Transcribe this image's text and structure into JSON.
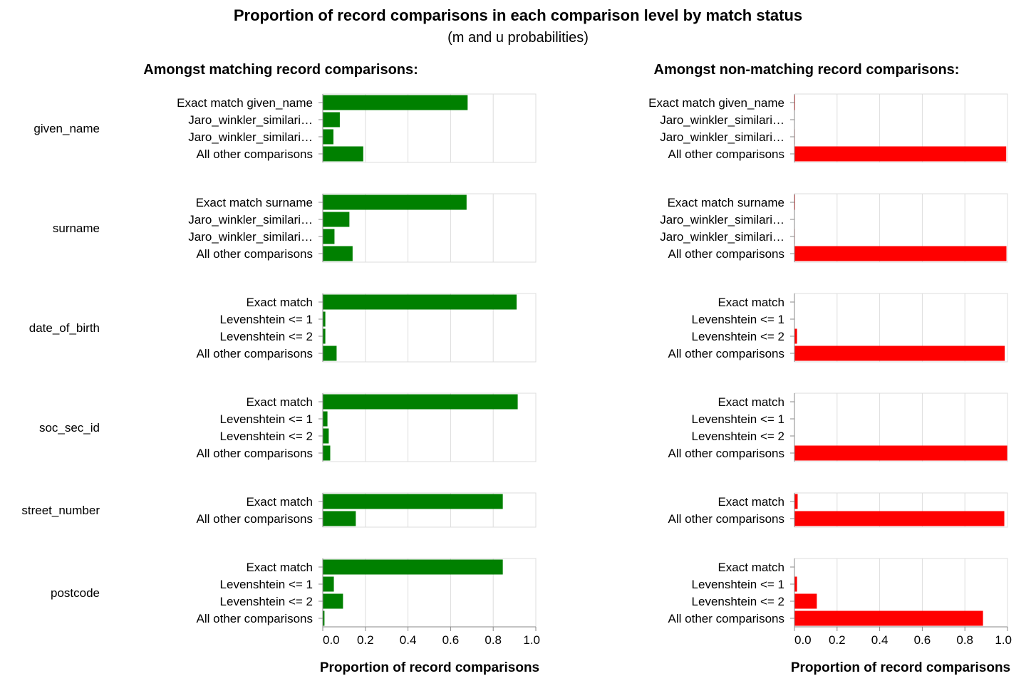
{
  "chart_data": {
    "type": "bar",
    "title": "Proportion of record comparisons in each comparison level by match status",
    "subtitle": "(m and u probabilities)",
    "panels": [
      {
        "title": "Amongst matching record comparisons:",
        "color": "#008000",
        "xlabel": "Proportion of record comparisons"
      },
      {
        "title": "Amongst non-matching record comparisons:",
        "color": "#ff0000",
        "xlabel": "Proportion of record comparisons"
      }
    ],
    "xlim": [
      0,
      1
    ],
    "xticks": [
      "0.0",
      "0.2",
      "0.4",
      "0.6",
      "0.8",
      "1.0"
    ],
    "grid": true,
    "rows": [
      {
        "name": "given_name",
        "categories": [
          "Exact match given_name",
          "Jaro_winkler_similari…",
          "Jaro_winkler_similari…",
          "All other comparisons"
        ],
        "m": [
          0.68,
          0.08,
          0.05,
          0.19
        ],
        "u": [
          0.003,
          0.001,
          0.002,
          0.994
        ]
      },
      {
        "name": "surname",
        "categories": [
          "Exact match surname",
          "Jaro_winkler_similari…",
          "Jaro_winkler_similari…",
          "All other comparisons"
        ],
        "m": [
          0.675,
          0.125,
          0.055,
          0.14
        ],
        "u": [
          0.003,
          0.001,
          0.002,
          0.995
        ]
      },
      {
        "name": "date_of_birth",
        "categories": [
          "Exact match",
          "Levenshtein <= 1",
          "Levenshtein <= 2",
          "All other comparisons"
        ],
        "m": [
          0.91,
          0.012,
          0.012,
          0.065
        ],
        "u": [
          0.001,
          0.001,
          0.012,
          0.987
        ]
      },
      {
        "name": "soc_sec_id",
        "categories": [
          "Exact match",
          "Levenshtein <= 1",
          "Levenshtein <= 2",
          "All other comparisons"
        ],
        "m": [
          0.915,
          0.022,
          0.028,
          0.035
        ],
        "u": [
          0.0005,
          0.0005,
          0.0005,
          0.9985
        ]
      },
      {
        "name": "street_number",
        "categories": [
          "Exact match",
          "All other comparisons"
        ],
        "m": [
          0.845,
          0.155
        ],
        "u": [
          0.015,
          0.985
        ]
      },
      {
        "name": "postcode",
        "categories": [
          "Exact match",
          "Levenshtein <= 1",
          "Levenshtein <= 2",
          "All other comparisons"
        ],
        "m": [
          0.845,
          0.052,
          0.095,
          0.008
        ],
        "u": [
          0.001,
          0.012,
          0.105,
          0.885
        ]
      }
    ]
  }
}
